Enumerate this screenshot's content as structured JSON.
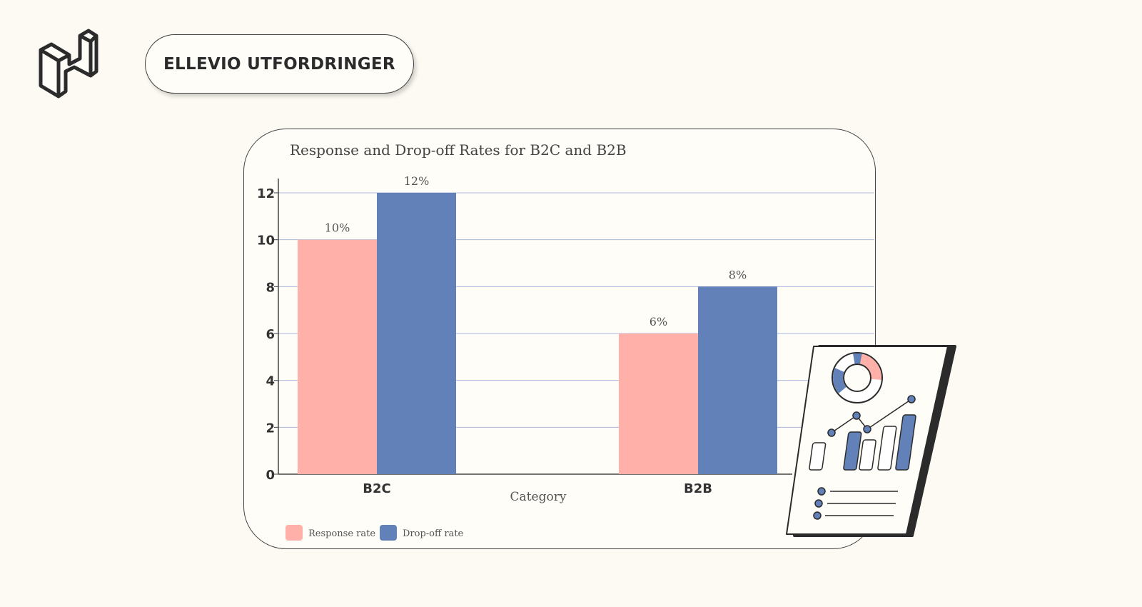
{
  "header": {
    "title": "ELLEVIO UTFORDRINGER",
    "logo_icon": "isometric-n-logo-icon"
  },
  "chart_data": {
    "type": "bar",
    "title": "Response and Drop-off Rates for B2C and B2B",
    "xlabel": "Category",
    "ylabel": "",
    "categories": [
      "B2C",
      "B2B"
    ],
    "series": [
      {
        "name": "Response rate",
        "values": [
          10,
          6
        ],
        "labels": [
          "10%",
          "6%"
        ],
        "color": "#ffb0a8"
      },
      {
        "name": "Drop-off rate",
        "values": [
          12,
          8
        ],
        "labels": [
          "12%",
          "8%"
        ],
        "color": "#6281b8"
      }
    ],
    "ylim": [
      0,
      12
    ],
    "yticks": [
      "0",
      "2",
      "4",
      "6",
      "8",
      "10",
      "12"
    ],
    "grid": true,
    "legend": "bottom-left"
  },
  "decoration": {
    "icon": "report-document-illustration-icon"
  }
}
